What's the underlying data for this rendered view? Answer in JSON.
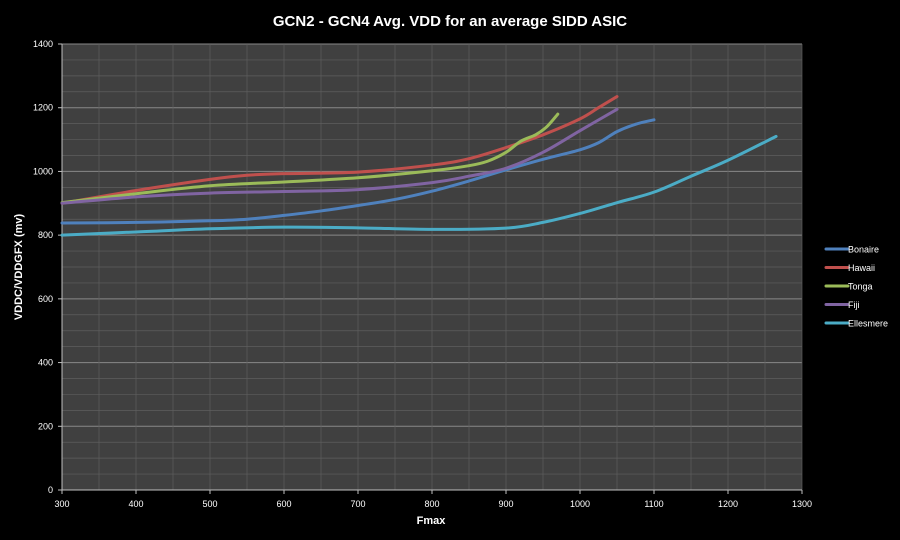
{
  "chart_data": {
    "type": "line",
    "title": "GCN2 - GCN4 Avg. VDD for an average SIDD ASIC",
    "xlabel": "Fmax",
    "ylabel": "VDDC/VDDGFX (mv)",
    "xlim": [
      300,
      1300
    ],
    "ylim": [
      0,
      1400
    ],
    "x_ticks": [
      300,
      400,
      500,
      600,
      700,
      800,
      900,
      1000,
      1100,
      1200,
      1300
    ],
    "y_ticks": [
      0,
      200,
      400,
      600,
      800,
      1000,
      1200,
      1400
    ],
    "grid": true,
    "legend_position": "right",
    "series": [
      {
        "name": "Bonaire",
        "color": "#4f81bd",
        "x": [
          300,
          400,
          500,
          550,
          600,
          650,
          700,
          750,
          800,
          850,
          900,
          950,
          1000,
          1025,
          1050,
          1075,
          1100
        ],
        "y": [
          838,
          840,
          845,
          850,
          862,
          876,
          893,
          912,
          938,
          970,
          1005,
          1038,
          1068,
          1090,
          1125,
          1148,
          1162
        ]
      },
      {
        "name": "Hawaii",
        "color": "#c0504d",
        "x": [
          300,
          400,
          500,
          550,
          600,
          700,
          800,
          850,
          900,
          950,
          1000,
          1025,
          1050
        ],
        "y": [
          900,
          940,
          975,
          988,
          993,
          998,
          1020,
          1040,
          1075,
          1115,
          1165,
          1200,
          1235
        ]
      },
      {
        "name": "Tonga",
        "color": "#9bbb59",
        "x": [
          300,
          400,
          500,
          600,
          700,
          800,
          850,
          875,
          900,
          920,
          940,
          955,
          970
        ],
        "y": [
          902,
          930,
          955,
          967,
          980,
          1002,
          1018,
          1032,
          1060,
          1095,
          1115,
          1140,
          1180
        ]
      },
      {
        "name": "Fiji",
        "color": "#8064a2",
        "x": [
          300,
          400,
          500,
          600,
          700,
          800,
          850,
          900,
          950,
          1000,
          1050
        ],
        "y": [
          900,
          920,
          932,
          937,
          943,
          965,
          985,
          1010,
          1060,
          1128,
          1195
        ]
      },
      {
        "name": "Ellesmere",
        "color": "#4bacc6",
        "x": [
          300,
          400,
          500,
          600,
          700,
          800,
          900,
          950,
          1000,
          1050,
          1100,
          1150,
          1200,
          1265
        ],
        "y": [
          800,
          810,
          820,
          825,
          823,
          818,
          822,
          840,
          868,
          902,
          935,
          985,
          1035,
          1110
        ]
      }
    ]
  }
}
